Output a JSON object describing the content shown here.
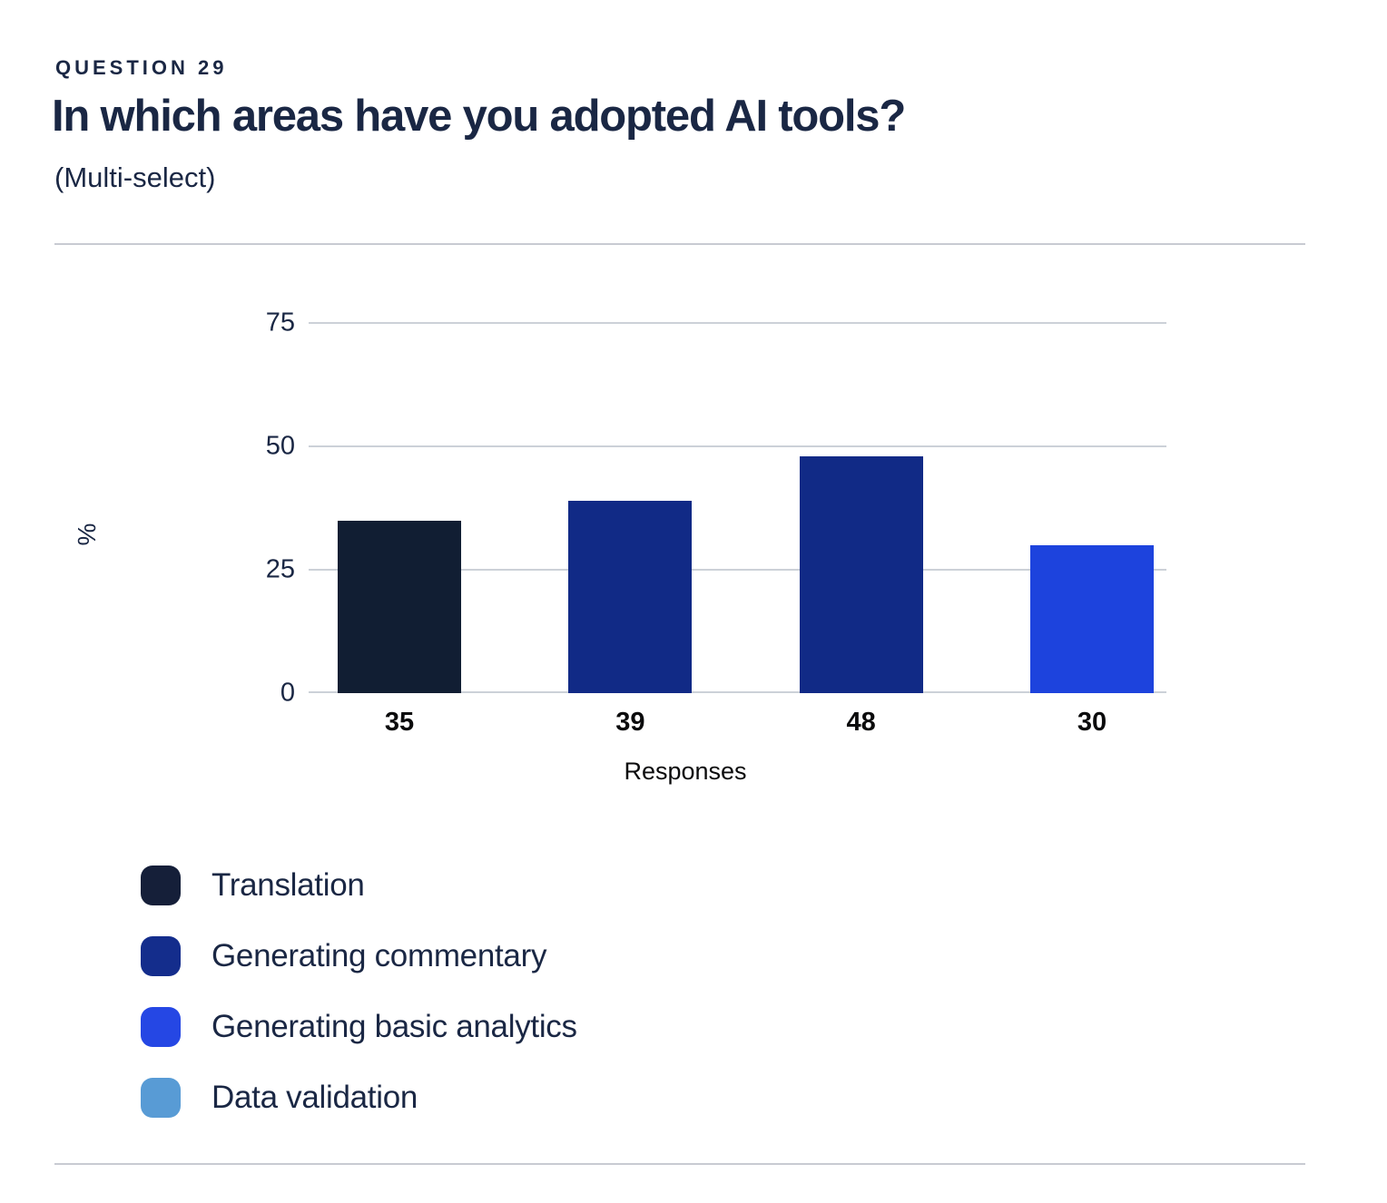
{
  "header": {
    "question_label": "QUESTION 29",
    "title": "In which areas have you adopted AI tools?",
    "subtitle": "(Multi-select)"
  },
  "chart_data": {
    "type": "bar",
    "title": "",
    "ylabel": "%",
    "xlabel": "Responses",
    "ylim": [
      0,
      78
    ],
    "yticks": [
      0,
      25,
      50,
      75
    ],
    "grid": true,
    "legend_position": "bottom-left",
    "bars": [
      {
        "x_label": "35",
        "value": 35,
        "color": "#111e33"
      },
      {
        "x_label": "39",
        "value": 39,
        "color": "#112a86"
      },
      {
        "x_label": "48",
        "value": 48,
        "color": "#112a86"
      },
      {
        "x_label": "30",
        "value": 30,
        "color": "#1d43dd"
      }
    ],
    "legend": [
      {
        "label": "Translation",
        "color": "#151f39"
      },
      {
        "label": "Generating commentary",
        "color": "#142d8c"
      },
      {
        "label": "Generating basic analytics",
        "color": "#2547e4"
      },
      {
        "label": "Data validation",
        "color": "#589bd5"
      }
    ]
  },
  "colors": {
    "text_navy": "#1a2744",
    "text_black": "#0b0b0c",
    "gridline": "#ccd1d8",
    "divider": "#c8cbd2",
    "background": "#ffffff"
  }
}
